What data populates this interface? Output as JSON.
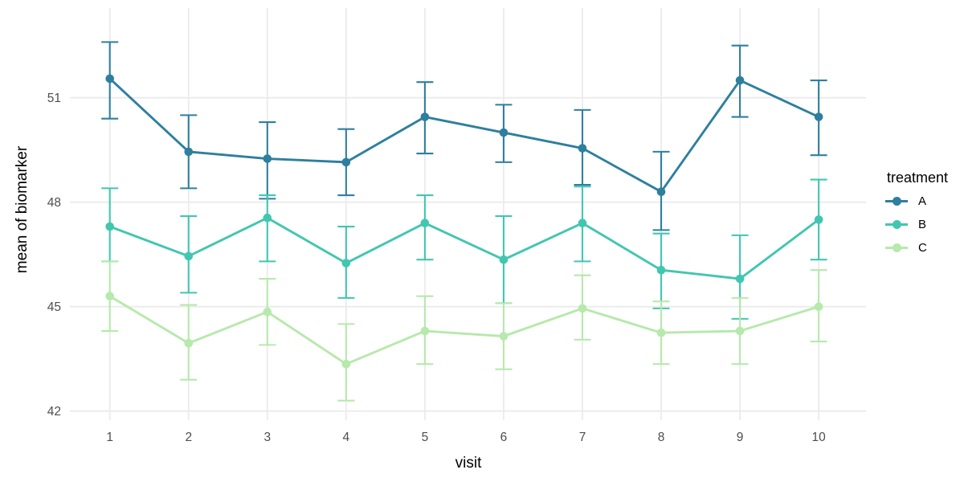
{
  "axes": {
    "x_title": "visit",
    "y_title": "mean of biomarker"
  },
  "legend": {
    "title": "treatment",
    "items": [
      {
        "label": "A",
        "color": "#2e7f9f"
      },
      {
        "label": "B",
        "color": "#41c6b1"
      },
      {
        "label": "C",
        "color": "#b6e9ab"
      }
    ]
  },
  "colors": {
    "grid": "#ebebeb",
    "tick_text": "#4d4d4d",
    "title_text": "#000000",
    "background": "#ffffff"
  },
  "chart_data": {
    "type": "line",
    "title": "",
    "xlabel": "visit",
    "ylabel": "mean of biomarker",
    "x": [
      1,
      2,
      3,
      4,
      5,
      6,
      7,
      8,
      9,
      10
    ],
    "x_ticks": [
      "1",
      "2",
      "3",
      "4",
      "5",
      "6",
      "7",
      "8",
      "9",
      "10"
    ],
    "y_ticks": [
      42,
      45,
      48,
      51
    ],
    "ylim": [
      41.7,
      53.6
    ],
    "grid": "major-only",
    "legend_position": "right",
    "error_bars": true,
    "series": [
      {
        "name": "A",
        "color": "#2e7f9f",
        "mean": [
          51.55,
          49.45,
          49.25,
          49.15,
          50.45,
          50.0,
          49.55,
          48.3,
          51.5,
          50.45
        ],
        "lower": [
          50.4,
          48.4,
          48.1,
          48.2,
          49.4,
          49.15,
          48.5,
          47.2,
          50.45,
          49.35
        ],
        "upper": [
          52.6,
          50.5,
          50.3,
          50.1,
          51.45,
          50.8,
          50.65,
          49.45,
          52.5,
          51.5
        ]
      },
      {
        "name": "B",
        "color": "#41c6b1",
        "mean": [
          47.3,
          46.45,
          47.55,
          46.25,
          47.4,
          46.35,
          47.4,
          46.05,
          45.8,
          47.5
        ],
        "lower": [
          46.3,
          45.4,
          46.3,
          45.25,
          46.35,
          45.1,
          46.3,
          44.95,
          44.65,
          46.35
        ],
        "upper": [
          48.4,
          47.6,
          48.2,
          47.3,
          48.2,
          47.6,
          48.45,
          47.1,
          47.05,
          48.65
        ]
      },
      {
        "name": "C",
        "color": "#b6e9ab",
        "mean": [
          45.3,
          43.95,
          44.85,
          43.35,
          44.3,
          44.15,
          44.95,
          44.25,
          44.3,
          45.0
        ],
        "lower": [
          44.3,
          42.9,
          43.9,
          42.3,
          43.35,
          43.2,
          44.05,
          43.35,
          43.35,
          44.0
        ],
        "upper": [
          46.3,
          45.05,
          45.8,
          44.5,
          45.3,
          45.1,
          45.9,
          45.15,
          45.25,
          46.05
        ]
      }
    ]
  }
}
